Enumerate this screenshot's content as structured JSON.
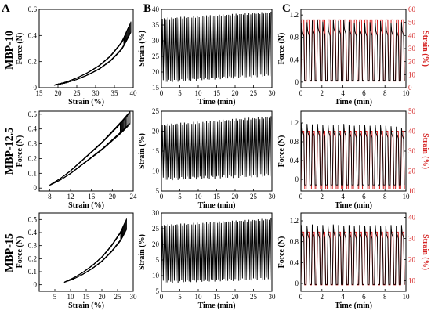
{
  "figure": {
    "panel_letters": [
      "A",
      "B",
      "C"
    ],
    "row_labels": [
      "MBP-10",
      "MBP-12.5",
      "MBP-15"
    ],
    "colors": {
      "primary": "#000000",
      "secondary": "#d42020"
    }
  },
  "chart_data": [
    {
      "id": "A1",
      "type": "scatter",
      "xlabel": "Strain (%)",
      "ylabel": "Force (N)",
      "xlim": [
        15,
        40
      ],
      "ylim": [
        0,
        0.6
      ],
      "xticks": [
        15,
        20,
        25,
        30,
        35,
        40
      ],
      "yticks": [
        0.0,
        0.2,
        0.4,
        0.6
      ],
      "series": [
        {
          "values_x": [
            19,
            22,
            25,
            28,
            31,
            34,
            37,
            39.5
          ],
          "values_y": [
            0.02,
            0.04,
            0.07,
            0.11,
            0.16,
            0.23,
            0.33,
            0.48
          ]
        }
      ],
      "cycles": 60
    },
    {
      "id": "B1",
      "type": "line",
      "xlabel": "Time (min)",
      "ylabel": "Strain (%)",
      "xlim": [
        0,
        30
      ],
      "ylim": [
        15,
        40
      ],
      "xticks": [
        0,
        5,
        10,
        15,
        20,
        25,
        30
      ],
      "yticks": [
        15,
        20,
        25,
        30,
        35,
        40
      ],
      "series": [
        {
          "x_range": [
            0,
            30
          ],
          "cycles": 60,
          "min_start": 17,
          "min_end": 19,
          "max_start": 37,
          "max_end": 39
        }
      ]
    },
    {
      "id": "C1",
      "type": "line",
      "xlabel": "Time (min)",
      "ylabel": "Force (N)",
      "ylabel_right": "Strain (%)",
      "xlim": [
        0,
        10
      ],
      "ylim": [
        -0.1,
        1.3
      ],
      "ylim_right": [
        0,
        60
      ],
      "xticks": [
        0,
        2,
        4,
        6,
        8,
        10
      ],
      "yticks": [
        0.0,
        0.4,
        0.8,
        1.2
      ],
      "yticks_right": [
        0,
        10,
        20,
        30,
        40,
        50,
        60
      ],
      "series": [
        {
          "name": "Force",
          "color": "#000000",
          "cycles": 20,
          "peak_values": [
            1.05,
            1.07,
            1.1,
            1.12,
            1.08,
            1.06,
            1.12,
            1.09,
            1.11,
            1.08,
            1.06,
            1.08,
            1.05,
            1.07,
            1.06,
            1.09,
            1.07,
            1.06,
            1.05,
            1.07
          ],
          "min": 0.03
        },
        {
          "name": "Strain",
          "color": "#d42020",
          "cycles": 20,
          "max": 52,
          "min": 5
        }
      ]
    },
    {
      "id": "A2",
      "type": "scatter",
      "xlabel": "Strain (%)",
      "ylabel": "Force (N)",
      "xlim": [
        6,
        24
      ],
      "ylim": [
        -0.02,
        0.52
      ],
      "xticks": [
        8,
        12,
        16,
        20,
        24
      ],
      "yticks": [
        0.0,
        0.1,
        0.2,
        0.3,
        0.4,
        0.5
      ],
      "series": [
        {
          "values_x": [
            8,
            10,
            12,
            14,
            16,
            18,
            20,
            22,
            23.5
          ],
          "values_y": [
            0.02,
            0.06,
            0.11,
            0.17,
            0.23,
            0.29,
            0.36,
            0.43,
            0.49
          ]
        }
      ],
      "cycles": 60
    },
    {
      "id": "B2",
      "type": "line",
      "xlabel": "Time (min)",
      "ylabel": "Strain (%)",
      "xlim": [
        0,
        30
      ],
      "ylim": [
        5,
        25
      ],
      "xticks": [
        0,
        5,
        10,
        15,
        20,
        25,
        30
      ],
      "yticks": [
        5,
        10,
        15,
        20,
        25
      ],
      "series": [
        {
          "x_range": [
            0,
            30
          ],
          "cycles": 60,
          "min_start": 8,
          "min_end": 9,
          "max_start": 21.5,
          "max_end": 23.5
        }
      ]
    },
    {
      "id": "C2",
      "type": "line",
      "xlabel": "Time (min)",
      "ylabel": "Force (N)",
      "ylabel_right": "Strain (%)",
      "xlim": [
        0,
        10
      ],
      "ylim": [
        -0.25,
        1.45
      ],
      "ylim_right": [
        10,
        50
      ],
      "xticks": [
        0,
        2,
        4,
        6,
        8,
        10
      ],
      "yticks": [
        0.0,
        0.4,
        0.8,
        1.2
      ],
      "yticks_right": [
        10,
        20,
        30,
        40,
        50
      ],
      "series": [
        {
          "name": "Force",
          "color": "#000000",
          "cycles": 20,
          "peak_values": [
            1.2,
            1.18,
            1.17,
            1.18,
            1.16,
            1.17,
            1.15,
            1.16,
            1.18,
            1.15,
            1.14,
            1.16,
            1.15,
            1.14,
            1.16,
            1.15,
            1.14,
            1.13,
            1.12,
            1.1
          ],
          "min": -0.12
        },
        {
          "name": "Strain",
          "color": "#d42020",
          "cycles": 20,
          "max": 40,
          "min": 11
        }
      ]
    },
    {
      "id": "A3",
      "type": "scatter",
      "xlabel": "Strain (%)",
      "ylabel": "Force (N)",
      "xlim": [
        0,
        30
      ],
      "ylim": [
        -0.05,
        0.55
      ],
      "xticks": [
        5,
        10,
        15,
        20,
        25,
        30
      ],
      "yticks": [
        0.0,
        0.1,
        0.2,
        0.3,
        0.4,
        0.5
      ],
      "series": [
        {
          "values_x": [
            8,
            11,
            14,
            17,
            20,
            23,
            26,
            28
          ],
          "values_y": [
            0.02,
            0.05,
            0.09,
            0.14,
            0.2,
            0.28,
            0.38,
            0.48
          ]
        }
      ],
      "cycles": 60
    },
    {
      "id": "B3",
      "type": "line",
      "xlabel": "Time (min)",
      "ylabel": "Strain (%)",
      "xlim": [
        0,
        30
      ],
      "ylim": [
        5,
        30
      ],
      "xticks": [
        0,
        5,
        10,
        15,
        20,
        25,
        30
      ],
      "yticks": [
        5,
        10,
        15,
        20,
        25,
        30
      ],
      "series": [
        {
          "x_range": [
            0,
            30
          ],
          "cycles": 60,
          "min_start": 8,
          "min_end": 9,
          "max_start": 26,
          "max_end": 28
        }
      ]
    },
    {
      "id": "C3",
      "type": "line",
      "xlabel": "Time (min)",
      "ylabel": "Force (N)",
      "ylabel_right": "Strain (%)",
      "xlim": [
        0,
        10
      ],
      "ylim": [
        -0.15,
        1.35
      ],
      "ylim_right": [
        5,
        42
      ],
      "xticks": [
        0,
        2,
        4,
        6,
        8,
        10
      ],
      "yticks": [
        0.0,
        0.4,
        0.8,
        1.2
      ],
      "yticks_right": [
        10,
        20,
        30,
        40
      ],
      "series": [
        {
          "name": "Force",
          "color": "#000000",
          "cycles": 20,
          "peak_values": [
            1.12,
            1.1,
            1.13,
            1.11,
            1.12,
            1.1,
            1.13,
            1.12,
            1.11,
            1.12,
            1.1,
            1.12,
            1.11,
            1.1,
            1.12,
            1.11,
            1.1,
            1.12,
            1.11,
            1.12
          ],
          "min": -0.02
        },
        {
          "name": "Strain",
          "color": "#d42020",
          "cycles": 20,
          "max": 33,
          "min": 8
        }
      ]
    }
  ]
}
